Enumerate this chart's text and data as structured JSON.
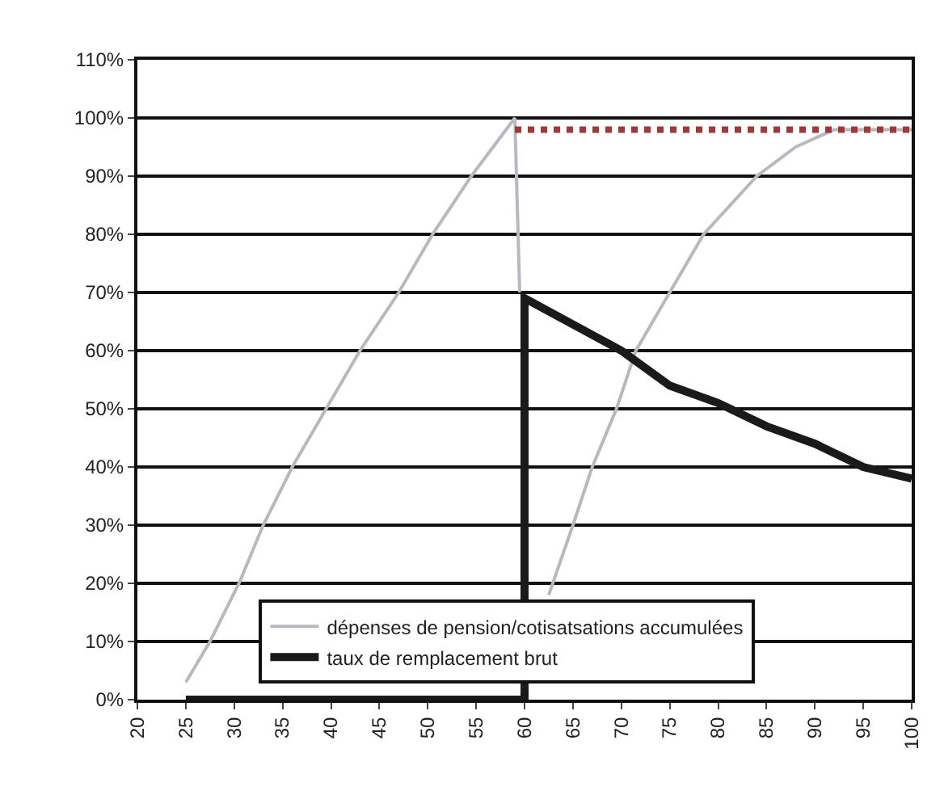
{
  "chart_data": {
    "type": "line",
    "xlim": [
      20,
      100
    ],
    "xticks": [
      20,
      25,
      30,
      35,
      40,
      45,
      50,
      55,
      60,
      65,
      70,
      75,
      80,
      85,
      90,
      95,
      100
    ],
    "ylim": [
      0,
      110
    ],
    "yticks": [
      {
        "value": 0,
        "label": "0%"
      },
      {
        "value": 10,
        "label": "10%"
      },
      {
        "value": 20,
        "label": "20%"
      },
      {
        "value": 30,
        "label": "30%"
      },
      {
        "value": 40,
        "label": "40%"
      },
      {
        "value": 50,
        "label": "50%"
      },
      {
        "value": 60,
        "label": "60%"
      },
      {
        "value": 70,
        "label": "70%"
      },
      {
        "value": 80,
        "label": "80%"
      },
      {
        "value": 90,
        "label": "90%"
      },
      {
        "value": 100,
        "label": "100%"
      },
      {
        "value": 110,
        "label": "110%"
      }
    ],
    "grid": "y",
    "legend": "bottom",
    "marker": "none",
    "series": [
      {
        "name": "dépenses de pension/cotisatsations accumulées",
        "color": "#b8b8c0",
        "line_style": "solid",
        "x": [
          25,
          27.5,
          30.5,
          33,
          36,
          39.5,
          43,
          47,
          50.5,
          54.5,
          59,
          59.5,
          60,
          61,
          62.5,
          65,
          67,
          69.5,
          71.5,
          75,
          78.5,
          84,
          88,
          92,
          96,
          100
        ],
        "values": [
          3,
          10,
          20,
          30,
          40,
          50,
          60,
          70,
          80,
          90,
          100,
          70,
          null,
          null,
          18,
          30,
          40,
          50,
          60,
          70,
          80,
          90,
          95,
          98,
          98,
          98
        ]
      },
      {
        "name": "taux de remplacement brut",
        "color": "#1a1a1a",
        "line_style": "solid",
        "x": [
          25,
          60,
          60,
          70,
          75,
          80,
          85,
          90,
          95,
          100
        ],
        "values": [
          0,
          0,
          69,
          60,
          54,
          51,
          47,
          44,
          40,
          38
        ]
      },
      {
        "color": "#a03838",
        "line_style": "dotted",
        "x": [
          59,
          100
        ],
        "values": [
          98,
          98
        ]
      }
    ]
  }
}
